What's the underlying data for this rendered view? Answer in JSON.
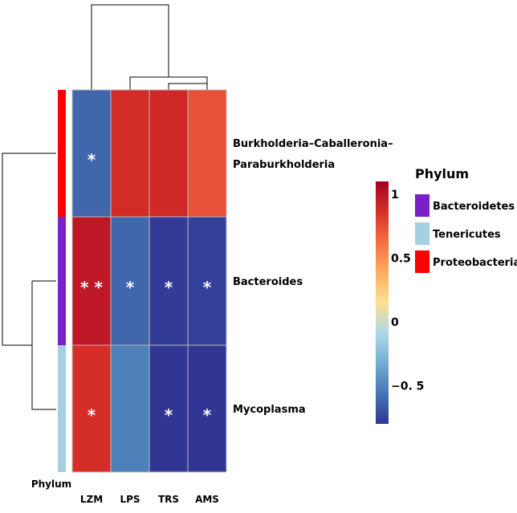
{
  "chart_data": {
    "type": "heatmap",
    "columns": [
      "LZM",
      "LPS",
      "TRS",
      "AMS"
    ],
    "rows": [
      {
        "label_lines": [
          "Burkholderia–Caballeronia–",
          "Paraburkholderia"
        ],
        "phylum": "Proteobacteria",
        "values": [
          -0.62,
          0.88,
          0.9,
          0.73
        ],
        "sig": [
          "*",
          "",
          "",
          ""
        ]
      },
      {
        "label_lines": [
          "Bacteroides"
        ],
        "phylum": "Bacteroidetes",
        "values": [
          0.98,
          -0.62,
          -0.78,
          -0.76
        ],
        "sig": [
          "* *",
          "*",
          "*",
          "*"
        ]
      },
      {
        "label_lines": [
          "Mycoplasma"
        ],
        "phylum": "Tenericutes",
        "values": [
          0.87,
          -0.52,
          -0.8,
          -0.8
        ],
        "sig": [
          "*",
          "",
          "*",
          "*"
        ]
      }
    ],
    "colorbar": {
      "range": [
        -0.8,
        1.1
      ],
      "ticks": [
        {
          "value": 1,
          "label": "1"
        },
        {
          "value": 0.5,
          "label": "0.5"
        },
        {
          "value": 0,
          "label": "0"
        },
        {
          "value": -0.5,
          "label": "−0. 5"
        }
      ],
      "colors": [
        "#313695",
        "#4575b4",
        "#74add1",
        "#abd9e9",
        "#fee090",
        "#fdae61",
        "#f46d43",
        "#d73027",
        "#a50026"
      ]
    },
    "annotation_label": "Phylum",
    "legend": {
      "title": "Phylum",
      "items": [
        {
          "name": "Bacteroidetes",
          "color": "#7b20c9"
        },
        {
          "name": "Tenericutes",
          "color": "#a5d0e3"
        },
        {
          "name": "Proteobacteria",
          "color": "#ff0000"
        }
      ]
    }
  }
}
